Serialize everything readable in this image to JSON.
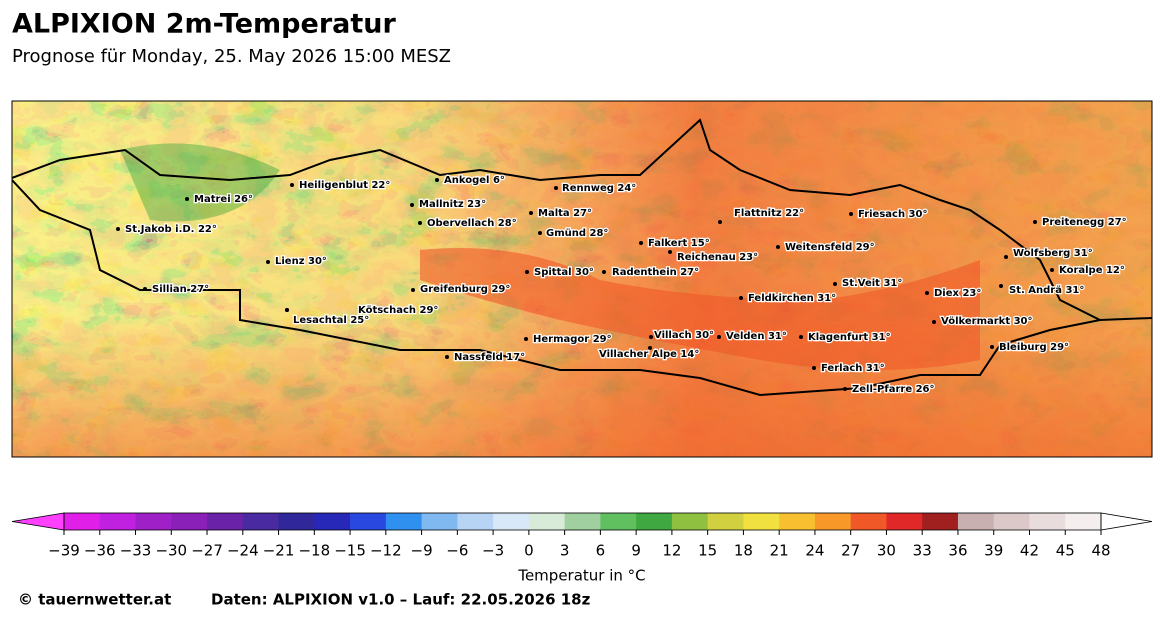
{
  "header": {
    "title": "ALPIXION 2m-Temperatur",
    "subtitle": "Prognose für Monday, 25. May 2026 15:00 MESZ"
  },
  "cities": [
    {
      "label": "Matrei 26°"
    },
    {
      "label": "Heiligenblut 22°"
    },
    {
      "label": "Ankogel 6°"
    },
    {
      "label": "Rennweg 24°"
    },
    {
      "label": "Mallnitz 23°"
    },
    {
      "label": "Obervellach 28°"
    },
    {
      "label": "Malta 27°"
    },
    {
      "label": "Gmünd 28°"
    },
    {
      "label": "Flattnitz 22°"
    },
    {
      "label": "Friesach 30°"
    },
    {
      "label": "Preitenegg 27°"
    },
    {
      "label": "St.Jakob i.D. 22°"
    },
    {
      "label": "Falkert 15°"
    },
    {
      "label": "Reichenau 23°"
    },
    {
      "label": "Weitensfeld 29°"
    },
    {
      "label": "Wolfsberg 31°"
    },
    {
      "label": "Koralpe 12°"
    },
    {
      "label": "Lienz 30°"
    },
    {
      "label": "Spittal 30°"
    },
    {
      "label": "Radenthein 27°"
    },
    {
      "label": "St.Veit 31°"
    },
    {
      "label": "Sillian 27°"
    },
    {
      "label": "Greifenburg 29°"
    },
    {
      "label": "Diex 23°"
    },
    {
      "label": "St. Andrä 31°"
    },
    {
      "label": "Feldkirchen 31°"
    },
    {
      "label": "Kötschach 29°"
    },
    {
      "label": "Lesachtal 25°"
    },
    {
      "label": "Völkermarkt 30°"
    },
    {
      "label": "Hermagor 29°"
    },
    {
      "label": "Villach 30°"
    },
    {
      "label": "Velden 31°"
    },
    {
      "label": "Klagenfurt 31°"
    },
    {
      "label": "Villacher Alpe 14°"
    },
    {
      "label": "Nassfeld 17°"
    },
    {
      "label": "Bleiburg 29°"
    },
    {
      "label": "Ferlach 31°"
    },
    {
      "label": "Zell-Pfarre 26°"
    }
  ],
  "colorbar": {
    "label": "Temperatur in °C",
    "ticks": [
      {
        "value": -39,
        "label": "−39"
      },
      {
        "value": -36,
        "label": "−36"
      },
      {
        "value": -33,
        "label": "−33"
      },
      {
        "value": -30,
        "label": "−30"
      },
      {
        "value": -27,
        "label": "−27"
      },
      {
        "value": -24,
        "label": "−24"
      },
      {
        "value": -21,
        "label": "−21"
      },
      {
        "value": -18,
        "label": "−18"
      },
      {
        "value": -15,
        "label": "−15"
      },
      {
        "value": -12,
        "label": "−12"
      },
      {
        "value": -9,
        "label": "−9"
      },
      {
        "value": -6,
        "label": "−6"
      },
      {
        "value": -3,
        "label": "−3"
      },
      0,
      3,
      6,
      9,
      12,
      15,
      18,
      21,
      24,
      27,
      30,
      33,
      36,
      39,
      42,
      45,
      48
    ],
    "colors": [
      "#e020e8",
      "#c020e0",
      "#a020c8",
      "#8a20b8",
      "#6a22a8",
      "#4a2aa0",
      "#30289a",
      "#2828b8",
      "#2848e0",
      "#3090f0",
      "#80b8f0",
      "#b8d4f4",
      "#d8e8f8",
      "#d8ead8",
      "#a0d0a0",
      "#60c060",
      "#40a840",
      "#90c040",
      "#d0d040",
      "#f0e040",
      "#f8c030",
      "#f89828",
      "#f05828",
      "#e02828",
      "#a02020",
      "#c8b0b0",
      "#dcc8c8",
      "#e8dcdc",
      "#f4eeee"
    ],
    "under_color": "#ff40ff",
    "over_color": "#ffffff"
  },
  "footer": {
    "copyright": "© tauernwetter.at",
    "source": "Daten: ALPIXION v1.0 – Lauf: 22.05.2026 18z"
  }
}
